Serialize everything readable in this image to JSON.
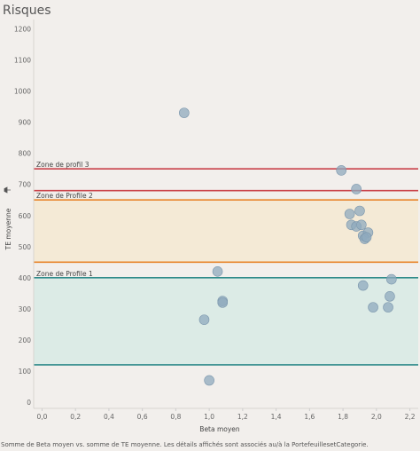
{
  "title": "Risques",
  "caption": "Somme de Beta moyen vs. somme de TE moyenne. Les détails affichés sont associés au/à la PortefeuillesetCategorie.",
  "chart_data": {
    "type": "scatter",
    "title": "Risques",
    "xlabel": "Beta moyen",
    "ylabel": "TE moyenne",
    "xlim": [
      -0.05,
      2.25
    ],
    "ylim": [
      -20,
      1230
    ],
    "xticks": [
      "0,0",
      "0,2",
      "0,4",
      "0,6",
      "0,8",
      "1,0",
      "1,2",
      "1,4",
      "1,6",
      "1,8",
      "2,0",
      "2,2"
    ],
    "xtick_values": [
      0,
      0.2,
      0.4,
      0.6,
      0.8,
      1.0,
      1.2,
      1.4,
      1.6,
      1.8,
      2.0,
      2.2
    ],
    "yticks": [
      "0",
      "100",
      "200",
      "300",
      "400",
      "500",
      "600",
      "700",
      "800",
      "900",
      "1000",
      "1100",
      "1200"
    ],
    "ytick_values": [
      0,
      100,
      200,
      300,
      400,
      500,
      600,
      700,
      800,
      900,
      1000,
      1100,
      1200
    ],
    "grid": false,
    "point_color": "#8fa9be",
    "bands": [
      {
        "from": 120,
        "to": 400,
        "fill": "#dcebe6",
        "line_color": "#2f8a8a",
        "label": "Zone de Profile 1",
        "label_at": 400
      },
      {
        "from": 450,
        "to": 650,
        "fill": "#f4ead6",
        "line_color": "#e8852a",
        "label": "Zone de Profile 2",
        "label_at": 650
      }
    ],
    "lines": [
      {
        "y": 680,
        "color": "#c94048",
        "label": ""
      },
      {
        "y": 750,
        "color": "#c94048",
        "label": "Zone de profil 3"
      }
    ],
    "points": [
      {
        "x": 0.85,
        "y": 930
      },
      {
        "x": 1.79,
        "y": 745
      },
      {
        "x": 1.88,
        "y": 685
      },
      {
        "x": 1.9,
        "y": 615
      },
      {
        "x": 1.84,
        "y": 605
      },
      {
        "x": 1.85,
        "y": 570
      },
      {
        "x": 1.88,
        "y": 565
      },
      {
        "x": 1.91,
        "y": 570
      },
      {
        "x": 1.92,
        "y": 535
      },
      {
        "x": 1.95,
        "y": 545
      },
      {
        "x": 1.93,
        "y": 525
      },
      {
        "x": 1.94,
        "y": 530
      },
      {
        "x": 1.05,
        "y": 420
      },
      {
        "x": 1.08,
        "y": 325
      },
      {
        "x": 1.08,
        "y": 320
      },
      {
        "x": 0.97,
        "y": 265
      },
      {
        "x": 1.0,
        "y": 70
      },
      {
        "x": 1.92,
        "y": 375
      },
      {
        "x": 2.09,
        "y": 395
      },
      {
        "x": 2.08,
        "y": 340
      },
      {
        "x": 1.98,
        "y": 305
      },
      {
        "x": 2.07,
        "y": 305
      }
    ]
  }
}
